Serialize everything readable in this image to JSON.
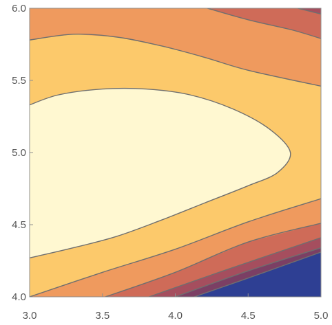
{
  "chart_data": {
    "type": "contour",
    "title": "",
    "xlabel": "",
    "ylabel": "",
    "xlim": [
      3.0,
      5.0
    ],
    "ylim": [
      4.0,
      6.0
    ],
    "x_ticks": [
      "3.0",
      "3.5",
      "4.0",
      "4.5",
      "5.0"
    ],
    "y_ticks": [
      "4.0",
      "4.5",
      "5.0",
      "5.5",
      "6.0"
    ],
    "grid": false,
    "legend": "none",
    "bands": [
      {
        "level": 0,
        "color": "#2E3F93"
      },
      {
        "level": 1,
        "color": "#7B3F64"
      },
      {
        "level": 2,
        "color": "#A54E5E"
      },
      {
        "level": 3,
        "color": "#CF6B58"
      },
      {
        "level": 4,
        "color": "#EF9A5E"
      },
      {
        "level": 5,
        "color": "#FCC96B"
      },
      {
        "level": 6,
        "color": "#FFF8D1"
      }
    ],
    "contours": [
      {
        "name": "innermost",
        "points": [
          [
            3.0,
            5.33
          ],
          [
            3.2,
            5.4
          ],
          [
            3.5,
            5.44
          ],
          [
            3.8,
            5.44
          ],
          [
            4.1,
            5.4
          ],
          [
            4.4,
            5.3
          ],
          [
            4.65,
            5.16
          ],
          [
            4.79,
            5.0
          ],
          [
            4.7,
            4.86
          ],
          [
            4.5,
            4.77
          ],
          [
            4.2,
            4.65
          ],
          [
            3.9,
            4.53
          ],
          [
            3.6,
            4.42
          ],
          [
            3.3,
            4.34
          ],
          [
            3.0,
            4.27
          ]
        ]
      },
      {
        "name": "upper-second",
        "points": [
          [
            3.0,
            5.78
          ],
          [
            3.3,
            5.82
          ],
          [
            3.6,
            5.8
          ],
          [
            3.9,
            5.74
          ],
          [
            4.2,
            5.66
          ],
          [
            4.5,
            5.57
          ],
          [
            5.0,
            5.46
          ]
        ]
      },
      {
        "name": "upper-third",
        "points": [
          [
            4.22,
            6.0
          ],
          [
            4.5,
            5.92
          ],
          [
            4.8,
            5.85
          ],
          [
            5.0,
            5.79
          ]
        ]
      },
      {
        "name": "upper-fourth",
        "points": [
          [
            4.84,
            6.0
          ],
          [
            5.0,
            5.96
          ]
        ]
      },
      {
        "name": "lower-second",
        "points": [
          [
            3.0,
            4.0
          ],
          [
            3.5,
            4.17
          ],
          [
            4.0,
            4.33
          ],
          [
            4.5,
            4.52
          ],
          [
            5.0,
            4.68
          ]
        ]
      },
      {
        "name": "lower-third",
        "points": [
          [
            3.52,
            4.0
          ],
          [
            4.0,
            4.17
          ],
          [
            4.5,
            4.38
          ],
          [
            5.0,
            4.51
          ]
        ]
      },
      {
        "name": "lower-fourth",
        "points": [
          [
            3.82,
            4.0
          ],
          [
            4.3,
            4.17
          ],
          [
            5.0,
            4.41
          ]
        ]
      },
      {
        "name": "lower-fifth",
        "points": [
          [
            4.0,
            4.0
          ],
          [
            4.5,
            4.18
          ],
          [
            5.0,
            4.34
          ]
        ]
      },
      {
        "name": "lower-sixth",
        "points": [
          [
            4.13,
            4.0
          ],
          [
            4.5,
            4.13
          ],
          [
            5.0,
            4.31
          ]
        ]
      }
    ]
  }
}
